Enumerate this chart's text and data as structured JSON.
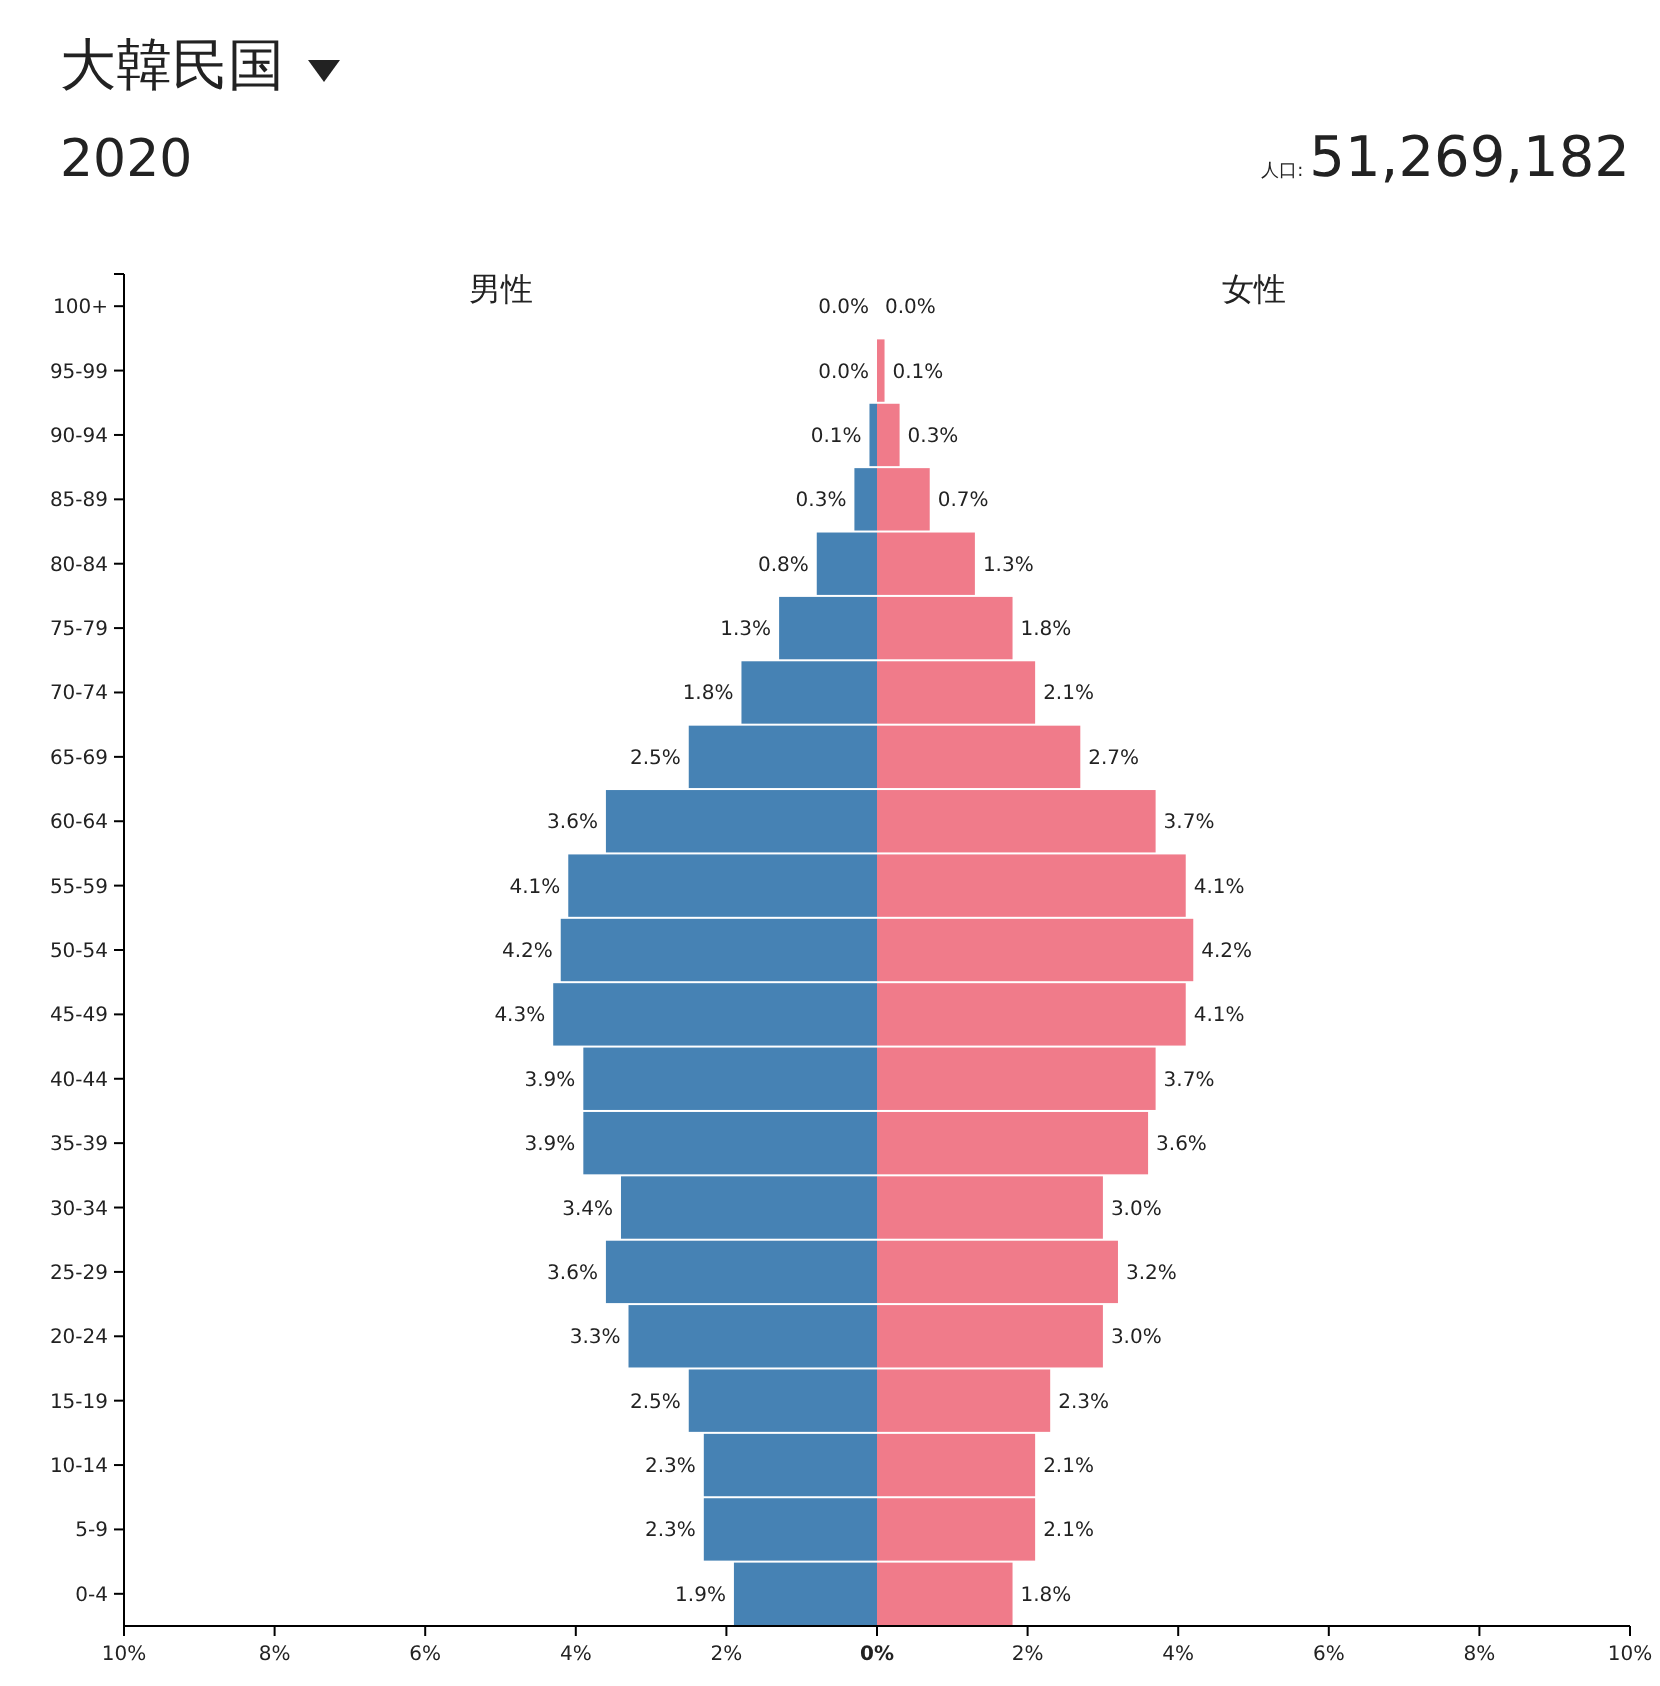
{
  "chart_data": [
    {
      "type": "other",
      "title": "大韓民国",
      "subtitle": "2020",
      "annotations": [
        "人口:",
        "51,269,182"
      ]
    },
    {
      "type": "bar",
      "orientation": "horizontal",
      "title": "男性",
      "categories": [
        "100+",
        "95-99",
        "90-94",
        "85-89",
        "80-84",
        "75-79",
        "70-74",
        "65-69",
        "60-64",
        "55-59",
        "50-54",
        "45-49",
        "40-44",
        "35-39",
        "30-34",
        "25-29",
        "20-24",
        "15-19",
        "10-14",
        "5-9",
        "0-4"
      ],
      "series": [
        {
          "color": "#4682b4",
          "values": [
            0.0,
            0.0,
            0.1,
            0.3,
            0.8,
            1.3,
            1.8,
            2.5,
            3.6,
            4.1,
            4.2,
            4.3,
            3.9,
            3.9,
            3.4,
            3.6,
            3.3,
            2.5,
            2.3,
            2.3,
            1.9
          ],
          "value_labels": [
            "0.0%",
            "0.0%",
            "0.1%",
            "0.3%",
            "0.8%",
            "1.3%",
            "1.8%",
            "2.5%",
            "3.6%",
            "4.1%",
            "4.2%",
            "4.3%",
            "3.9%",
            "3.9%",
            "3.4%",
            "3.6%",
            "3.3%",
            "2.5%",
            "2.3%",
            "2.3%",
            "1.9%"
          ]
        }
      ],
      "xlim": [
        10,
        0
      ],
      "xticks": [
        {
          "value": 10,
          "label": "10%"
        },
        {
          "value": 8,
          "label": "8%"
        },
        {
          "value": 6,
          "label": "6%"
        },
        {
          "value": 4,
          "label": "4%"
        },
        {
          "value": 2,
          "label": "2%"
        },
        {
          "value": 0,
          "label": null
        }
      ]
    },
    {
      "type": "bar",
      "orientation": "horizontal",
      "title": "女性",
      "tick_labels": "x",
      "categories": [
        null,
        null,
        null,
        null,
        null,
        null,
        null,
        null,
        null,
        null,
        null,
        null,
        null,
        null,
        null,
        null,
        null,
        null,
        null,
        null,
        null
      ],
      "series": [
        {
          "color": "#f07b8a",
          "values": [
            0.0,
            0.1,
            0.3,
            0.7,
            1.3,
            1.8,
            2.1,
            2.7,
            3.7,
            4.1,
            4.2,
            4.1,
            3.7,
            3.6,
            3.0,
            3.2,
            3.0,
            2.3,
            2.1,
            2.1,
            1.8
          ],
          "value_labels": [
            "0.0%",
            "0.1%",
            "0.3%",
            "0.7%",
            "1.3%",
            "1.8%",
            "2.1%",
            "2.7%",
            "3.7%",
            "4.1%",
            "4.2%",
            "4.1%",
            "3.7%",
            "3.6%",
            "3.0%",
            "3.2%",
            "3.0%",
            "2.3%",
            "2.1%",
            "2.1%",
            "1.8%"
          ]
        }
      ],
      "xlim": [
        0,
        10
      ],
      "xticks": [
        {
          "value": 0,
          "label": "0%"
        },
        {
          "value": 2,
          "label": "2%"
        },
        {
          "value": 4,
          "label": "4%"
        },
        {
          "value": 6,
          "label": "6%"
        },
        {
          "value": 8,
          "label": "8%"
        },
        {
          "value": 10,
          "label": "10%"
        }
      ]
    }
  ]
}
